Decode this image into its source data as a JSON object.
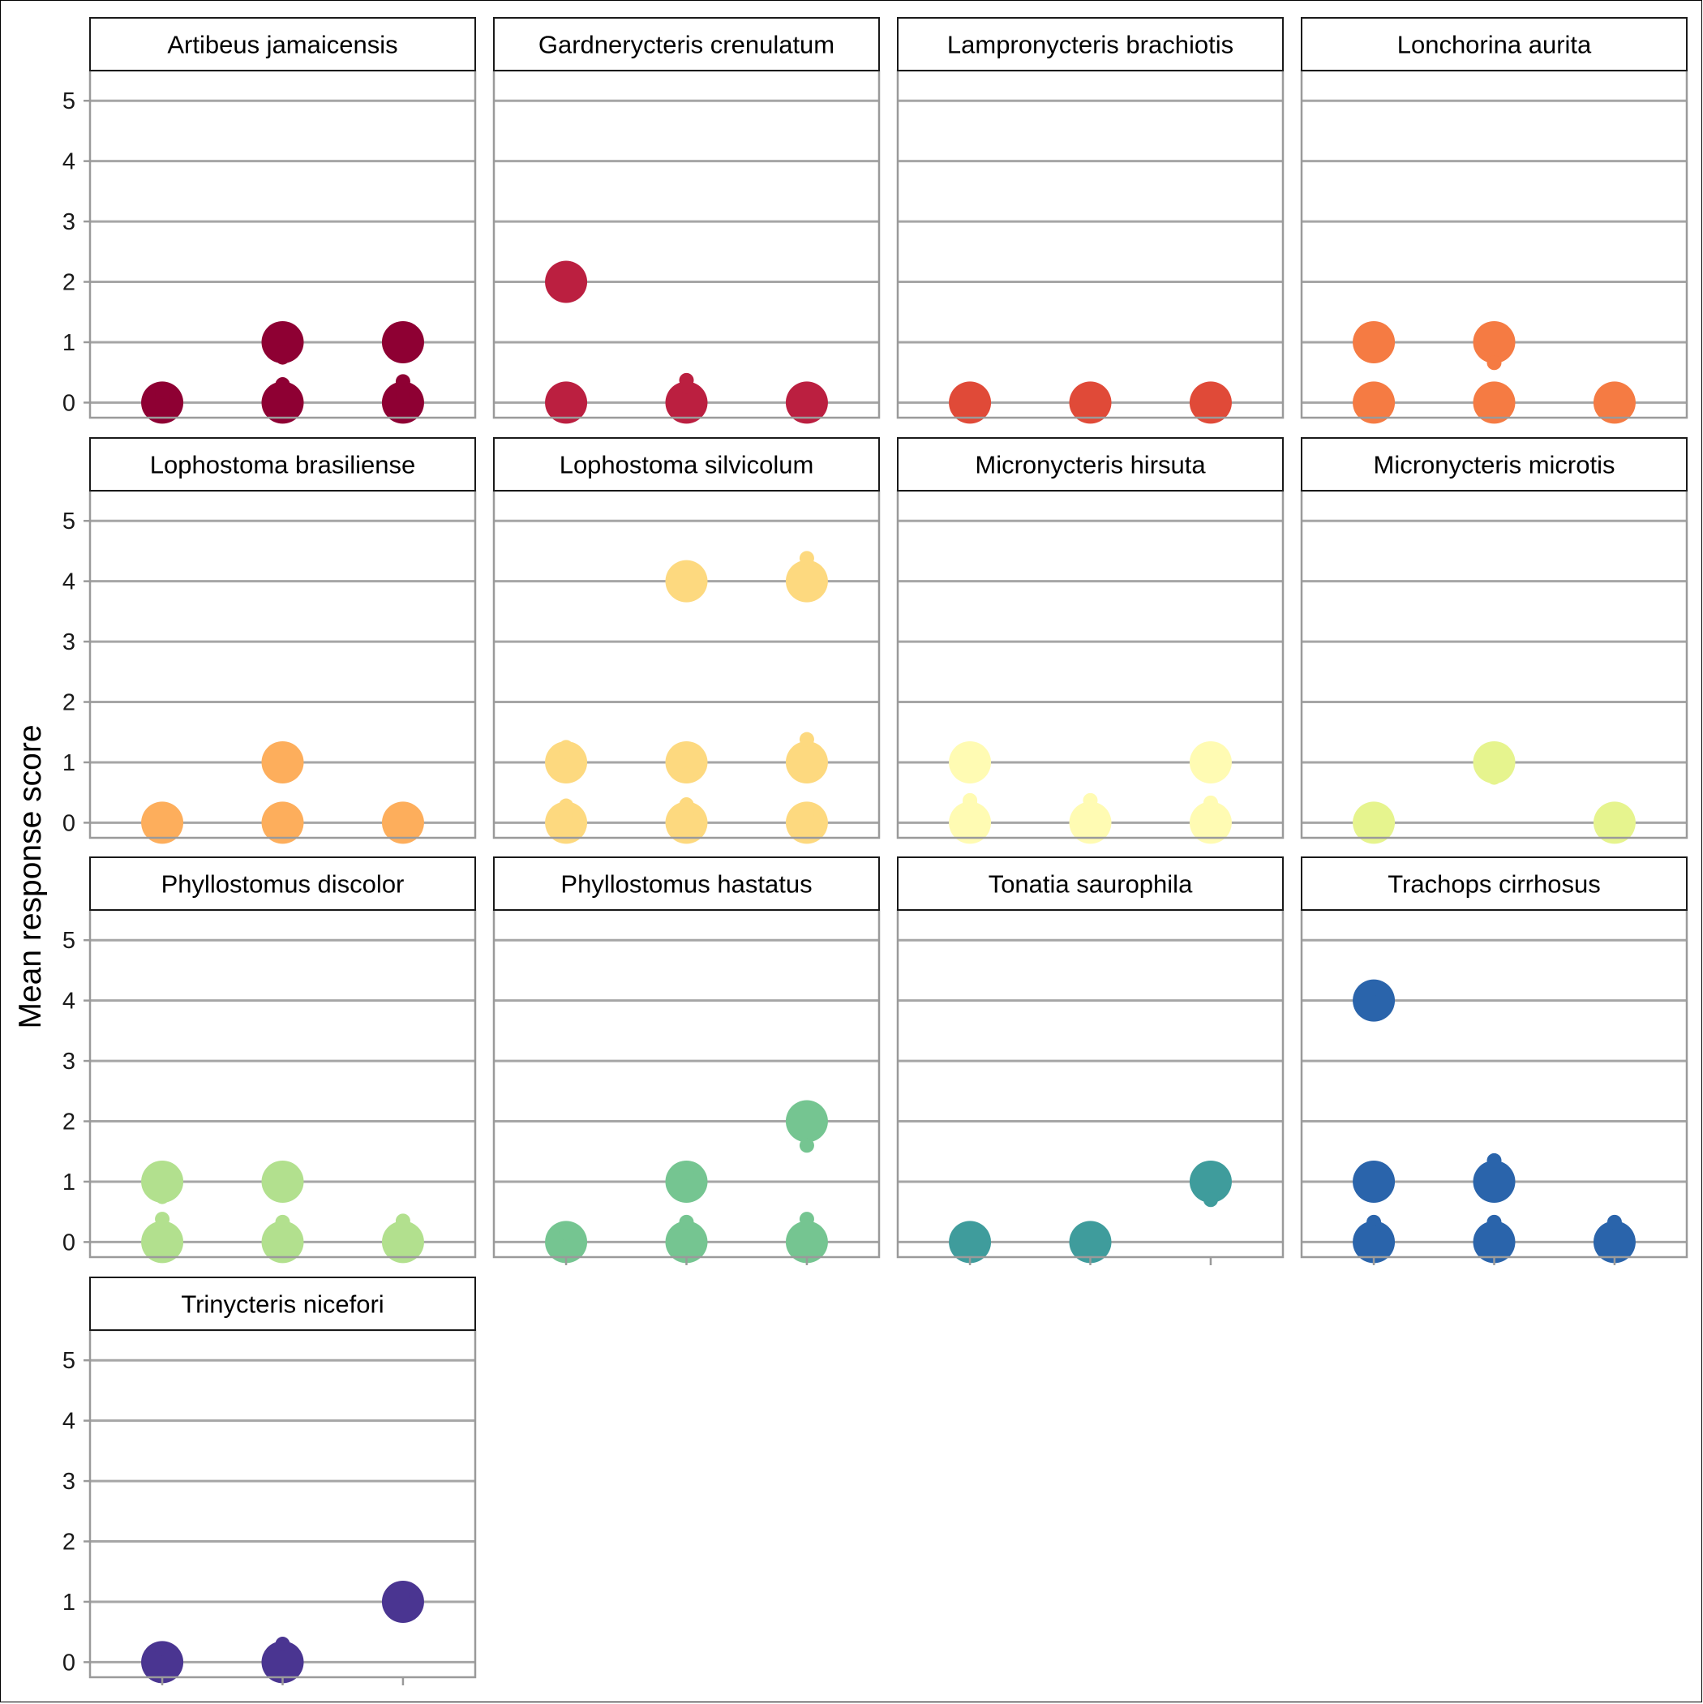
{
  "chart_data": {
    "type": "scatter",
    "ylabel": "Mean response score",
    "xlabel": "",
    "ylim": [
      -0.25,
      5.5
    ],
    "y_ticks": [
      "0",
      "1",
      "2",
      "3",
      "4",
      "5"
    ],
    "grid": "horizontal major",
    "x_positions": [
      1,
      2,
      3
    ],
    "x_tick_labels": [],
    "legend": "none",
    "panels": [
      {
        "title": "Artibeus jamaicensis",
        "color": "#8E0033",
        "points": [
          {
            "x": 1,
            "y": 0,
            "n": "large"
          },
          {
            "x": 1,
            "y": 0.05,
            "n": "small"
          },
          {
            "x": 1,
            "y": 0.12,
            "n": "small"
          },
          {
            "x": 1,
            "y": 0.22,
            "n": "small"
          },
          {
            "x": 1,
            "y": -0.05,
            "n": "small"
          },
          {
            "x": 2,
            "y": 1,
            "n": "large"
          },
          {
            "x": 2,
            "y": 0.75,
            "n": "small"
          },
          {
            "x": 2,
            "y": 0.83,
            "n": "small"
          },
          {
            "x": 2,
            "y": 0,
            "n": "large"
          },
          {
            "x": 2,
            "y": 0.27,
            "n": "small"
          },
          {
            "x": 2,
            "y": 0.3,
            "n": "small"
          },
          {
            "x": 2,
            "y": 0.1,
            "n": "small"
          },
          {
            "x": 3,
            "y": 1,
            "n": "large"
          },
          {
            "x": 3,
            "y": 0.78,
            "n": "small"
          },
          {
            "x": 3,
            "y": 0,
            "n": "large"
          },
          {
            "x": 3,
            "y": 0.35,
            "n": "small"
          },
          {
            "x": 3,
            "y": 0.2,
            "n": "small"
          },
          {
            "x": 3,
            "y": 0.15,
            "n": "small"
          },
          {
            "x": 3,
            "y": 0.1,
            "n": "small"
          }
        ]
      },
      {
        "title": "Gardnerycteris crenulatum",
        "color": "#BB1F40",
        "points": [
          {
            "x": 1,
            "y": 2,
            "n": "large"
          },
          {
            "x": 1,
            "y": 0,
            "n": "large"
          },
          {
            "x": 2,
            "y": 0,
            "n": "large"
          },
          {
            "x": 2,
            "y": 0.37,
            "n": "small"
          },
          {
            "x": 2,
            "y": 0.27,
            "n": "small"
          },
          {
            "x": 3,
            "y": 0,
            "n": "large"
          }
        ]
      },
      {
        "title": "Lampronycteris brachiotis",
        "color": "#E04A38",
        "points": [
          {
            "x": 1,
            "y": 0,
            "n": "large"
          },
          {
            "x": 2,
            "y": 0,
            "n": "large"
          },
          {
            "x": 3,
            "y": 0,
            "n": "large"
          }
        ]
      },
      {
        "title": "Lonchorina aurita",
        "color": "#F57B43",
        "points": [
          {
            "x": 1,
            "y": 1,
            "n": "large"
          },
          {
            "x": 1,
            "y": 0,
            "n": "large"
          },
          {
            "x": 2,
            "y": 1,
            "n": "large"
          },
          {
            "x": 2,
            "y": 0.66,
            "n": "small"
          },
          {
            "x": 2,
            "y": 0,
            "n": "large"
          },
          {
            "x": 3,
            "y": 0,
            "n": "large"
          }
        ]
      },
      {
        "title": "Lophostoma brasiliense",
        "color": "#FDAE5C",
        "points": [
          {
            "x": 1,
            "y": 0,
            "n": "large"
          },
          {
            "x": 2,
            "y": 1,
            "n": "large"
          },
          {
            "x": 2,
            "y": 0,
            "n": "large"
          },
          {
            "x": 3,
            "y": 0,
            "n": "large"
          }
        ]
      },
      {
        "title": "Lophostoma silvicolum",
        "color": "#FDD97F",
        "points": [
          {
            "x": 2,
            "y": 4,
            "n": "large"
          },
          {
            "x": 3,
            "y": 4,
            "n": "large"
          },
          {
            "x": 3,
            "y": 4.38,
            "n": "small"
          },
          {
            "x": 1,
            "y": 1,
            "n": "large"
          },
          {
            "x": 1,
            "y": 1.25,
            "n": "small"
          },
          {
            "x": 1,
            "y": 1.18,
            "n": "small"
          },
          {
            "x": 2,
            "y": 1,
            "n": "large"
          },
          {
            "x": 2,
            "y": 0.8,
            "n": "small"
          },
          {
            "x": 3,
            "y": 1,
            "n": "large"
          },
          {
            "x": 3,
            "y": 1.38,
            "n": "small"
          },
          {
            "x": 1,
            "y": 0,
            "n": "large"
          },
          {
            "x": 1,
            "y": 0.28,
            "n": "small"
          },
          {
            "x": 1,
            "y": 0.12,
            "n": "small"
          },
          {
            "x": 2,
            "y": 0,
            "n": "large"
          },
          {
            "x": 2,
            "y": 0.3,
            "n": "small"
          },
          {
            "x": 2,
            "y": 0.15,
            "n": "small"
          },
          {
            "x": 3,
            "y": 0,
            "n": "large"
          },
          {
            "x": 3,
            "y": 0.22,
            "n": "small"
          },
          {
            "x": 3,
            "y": 0.12,
            "n": "small"
          }
        ]
      },
      {
        "title": "Micronycteris hirsuta",
        "color": "#FFFBB3",
        "points": [
          {
            "x": 1,
            "y": 1,
            "n": "large"
          },
          {
            "x": 3,
            "y": 1,
            "n": "large"
          },
          {
            "x": 1,
            "y": 0,
            "n": "large"
          },
          {
            "x": 1,
            "y": 0.33,
            "n": "small"
          },
          {
            "x": 1,
            "y": 0.37,
            "n": "small"
          },
          {
            "x": 1,
            "y": 0.22,
            "n": "small"
          },
          {
            "x": 2,
            "y": 0,
            "n": "large"
          },
          {
            "x": 2,
            "y": 0.37,
            "n": "small"
          },
          {
            "x": 2,
            "y": 0.25,
            "n": "small"
          },
          {
            "x": 3,
            "y": 0,
            "n": "large"
          },
          {
            "x": 3,
            "y": 0.33,
            "n": "small"
          },
          {
            "x": 3,
            "y": 0.3,
            "n": "small"
          }
        ]
      },
      {
        "title": "Micronycteris microtis",
        "color": "#E6F48E",
        "points": [
          {
            "x": 1,
            "y": 0,
            "n": "large"
          },
          {
            "x": 2,
            "y": 1,
            "n": "large"
          },
          {
            "x": 2,
            "y": 0.75,
            "n": "small"
          },
          {
            "x": 3,
            "y": 0,
            "n": "large"
          }
        ]
      },
      {
        "title": "Phyllostomus discolor",
        "color": "#B2E08E",
        "points": [
          {
            "x": 1,
            "y": 1,
            "n": "large"
          },
          {
            "x": 1,
            "y": 0.8,
            "n": "small"
          },
          {
            "x": 1,
            "y": 0.75,
            "n": "small"
          },
          {
            "x": 2,
            "y": 1,
            "n": "large"
          },
          {
            "x": 1,
            "y": 0,
            "n": "large"
          },
          {
            "x": 1,
            "y": 0.38,
            "n": "small"
          },
          {
            "x": 1,
            "y": 0.25,
            "n": "small"
          },
          {
            "x": 2,
            "y": 0,
            "n": "large"
          },
          {
            "x": 2,
            "y": 0.33,
            "n": "small"
          },
          {
            "x": 2,
            "y": 0.3,
            "n": "small"
          },
          {
            "x": 3,
            "y": 0,
            "n": "large"
          },
          {
            "x": 3,
            "y": 0.35,
            "n": "small"
          },
          {
            "x": 3,
            "y": 0.3,
            "n": "small"
          }
        ]
      },
      {
        "title": "Phyllostomus hastatus",
        "color": "#75C591",
        "points": [
          {
            "x": 3,
            "y": 2,
            "n": "large"
          },
          {
            "x": 3,
            "y": 1.6,
            "n": "small"
          },
          {
            "x": 2,
            "y": 1,
            "n": "large"
          },
          {
            "x": 2,
            "y": 1.15,
            "n": "small"
          },
          {
            "x": 1,
            "y": 0,
            "n": "large"
          },
          {
            "x": 1,
            "y": 0.15,
            "n": "small"
          },
          {
            "x": 2,
            "y": 0,
            "n": "large"
          },
          {
            "x": 2,
            "y": 0.33,
            "n": "small"
          },
          {
            "x": 3,
            "y": 0,
            "n": "large"
          },
          {
            "x": 3,
            "y": 0.38,
            "n": "small"
          },
          {
            "x": 3,
            "y": 0.25,
            "n": "small"
          }
        ]
      },
      {
        "title": "Tonatia saurophila",
        "color": "#3F9C9C",
        "points": [
          {
            "x": 3,
            "y": 1,
            "n": "large"
          },
          {
            "x": 3,
            "y": 0.7,
            "n": "small"
          },
          {
            "x": 1,
            "y": 0,
            "n": "large"
          },
          {
            "x": 2,
            "y": 0,
            "n": "large"
          }
        ]
      },
      {
        "title": "Trachops cirrhosus",
        "color": "#2A64AB",
        "points": [
          {
            "x": 1,
            "y": 4,
            "n": "large"
          },
          {
            "x": 1,
            "y": 4.2,
            "n": "small"
          },
          {
            "x": 1,
            "y": 1,
            "n": "large"
          },
          {
            "x": 2,
            "y": 1,
            "n": "large"
          },
          {
            "x": 2,
            "y": 1.35,
            "n": "small"
          },
          {
            "x": 1,
            "y": 0,
            "n": "large"
          },
          {
            "x": 1,
            "y": 0.33,
            "n": "small"
          },
          {
            "x": 1,
            "y": 0.15,
            "n": "small"
          },
          {
            "x": 2,
            "y": 0,
            "n": "large"
          },
          {
            "x": 2,
            "y": 0.33,
            "n": "small"
          },
          {
            "x": 2,
            "y": 0.3,
            "n": "small"
          },
          {
            "x": 3,
            "y": 0,
            "n": "large"
          },
          {
            "x": 3,
            "y": 0.3,
            "n": "small"
          },
          {
            "x": 3,
            "y": 0.33,
            "n": "small"
          }
        ]
      },
      {
        "title": "Trinycteris nicefori",
        "color": "#4A3591",
        "points": [
          {
            "x": 1,
            "y": 0,
            "n": "large"
          },
          {
            "x": 1,
            "y": 0.22,
            "n": "small"
          },
          {
            "x": 2,
            "y": 0,
            "n": "large"
          },
          {
            "x": 2,
            "y": 0.3,
            "n": "small"
          },
          {
            "x": 3,
            "y": 1,
            "n": "large"
          },
          {
            "x": 3,
            "y": 1.1,
            "n": "small"
          }
        ]
      }
    ]
  }
}
